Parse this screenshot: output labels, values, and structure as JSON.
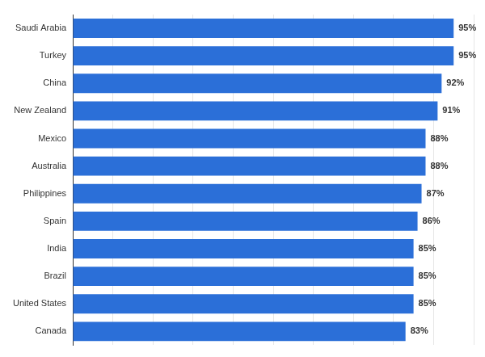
{
  "chart_data": {
    "type": "bar",
    "orientation": "horizontal",
    "categories": [
      "Saudi Arabia",
      "Turkey",
      "China",
      "New Zealand",
      "Mexico",
      "Australia",
      "Philippines",
      "Spain",
      "India",
      "Brazil",
      "United States",
      "Canada"
    ],
    "values": [
      95,
      95,
      92,
      91,
      88,
      88,
      87,
      86,
      85,
      85,
      85,
      83
    ],
    "value_labels": [
      "95%",
      "95%",
      "92%",
      "91%",
      "88%",
      "88%",
      "87%",
      "86%",
      "85%",
      "85%",
      "85%",
      "83%"
    ],
    "color": "#2b6fd8",
    "xlim": [
      0,
      100
    ],
    "xticks": [
      0,
      10,
      20,
      30,
      40,
      50,
      60,
      70,
      80,
      90,
      100
    ],
    "grid": true,
    "data_labels": true,
    "tick_labels": "y"
  }
}
